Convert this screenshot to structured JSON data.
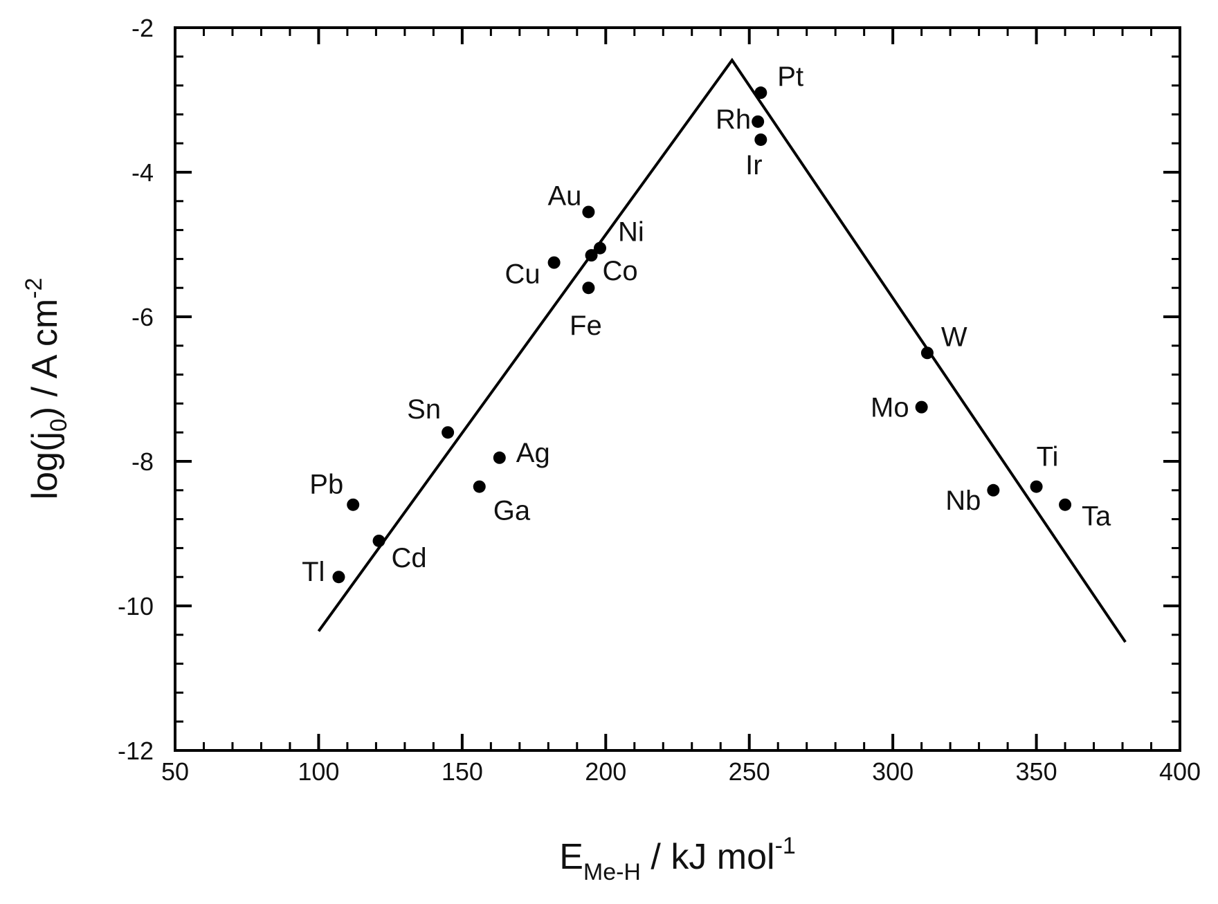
{
  "chart_data": {
    "type": "scatter",
    "title": "",
    "xlabel": {
      "main": "E",
      "sub": "Me-H",
      "rest": " / kJ mol",
      "sup": "-1"
    },
    "ylabel": {
      "pre": "log(j",
      "sub": "0",
      "mid": ") / A cm",
      "sup": "-2"
    },
    "xlim": [
      50,
      400
    ],
    "ylim": [
      -12,
      -2
    ],
    "xticks": [
      50,
      100,
      150,
      200,
      250,
      300,
      350,
      400
    ],
    "yticks": [
      -12,
      -10,
      -8,
      -6,
      -4,
      -2
    ],
    "grid": false,
    "legend": "none",
    "series": [
      {
        "points": [
          {
            "label": "Pt",
            "x": 254,
            "y": -2.9
          },
          {
            "label": "Rh",
            "x": 253,
            "y": -3.3
          },
          {
            "label": "Ir",
            "x": 254,
            "y": -3.55
          },
          {
            "label": "Au",
            "x": 194,
            "y": -4.55
          },
          {
            "label": "Ni",
            "x": 198,
            "y": -5.05
          },
          {
            "label": "Co",
            "x": 195,
            "y": -5.15
          },
          {
            "label": "Cu",
            "x": 182,
            "y": -5.25
          },
          {
            "label": "Fe",
            "x": 194,
            "y": -5.6
          },
          {
            "label": "W",
            "x": 312,
            "y": -6.5
          },
          {
            "label": "Mo",
            "x": 310,
            "y": -7.25
          },
          {
            "label": "Sn",
            "x": 145,
            "y": -7.6
          },
          {
            "label": "Ag",
            "x": 163,
            "y": -7.95
          },
          {
            "label": "Ga",
            "x": 156,
            "y": -8.35
          },
          {
            "label": "Ti",
            "x": 350,
            "y": -8.35
          },
          {
            "label": "Nb",
            "x": 335,
            "y": -8.4
          },
          {
            "label": "Ta",
            "x": 360,
            "y": -8.6
          },
          {
            "label": "Pb",
            "x": 112,
            "y": -8.6
          },
          {
            "label": "Cd",
            "x": 121,
            "y": -9.1
          },
          {
            "label": "Tl",
            "x": 107,
            "y": -9.6
          }
        ]
      }
    ],
    "trend_line": [
      {
        "x": 100,
        "y": -10.35
      },
      {
        "x": 244,
        "y": -2.45
      },
      {
        "x": 381,
        "y": -10.5
      }
    ]
  }
}
